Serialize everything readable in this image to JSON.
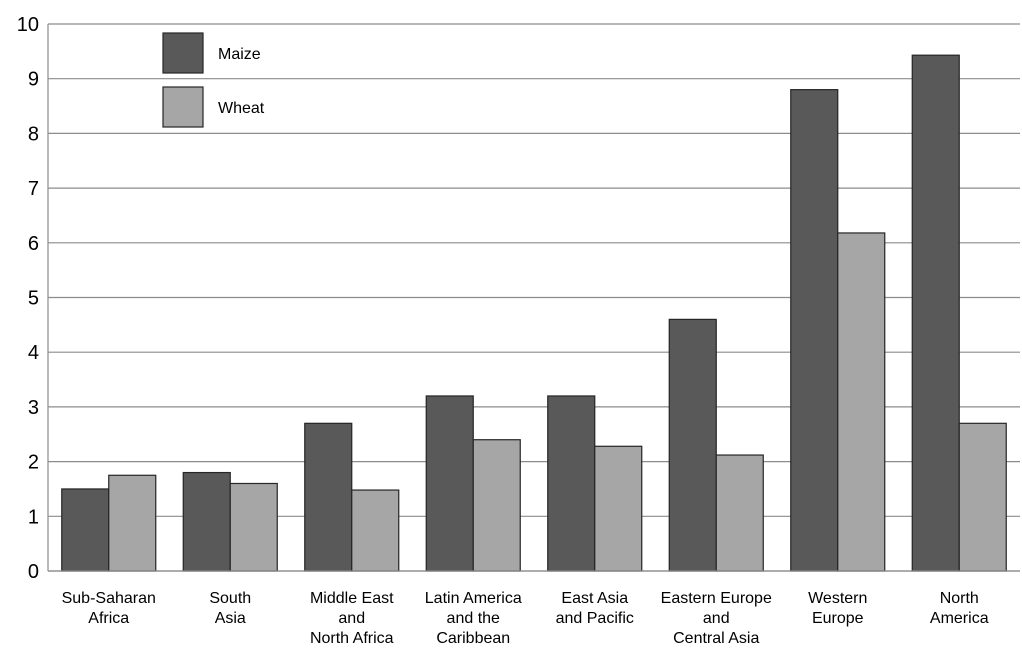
{
  "chart_data": {
    "type": "bar",
    "categories": [
      [
        "Sub-Saharan",
        "Africa"
      ],
      [
        "South",
        "Asia"
      ],
      [
        "Middle East",
        "and",
        "North Africa"
      ],
      [
        "Latin America",
        "and the",
        "Caribbean"
      ],
      [
        "East Asia",
        "and Pacific"
      ],
      [
        "Eastern Europe",
        "and",
        "Central Asia"
      ],
      [
        "Western",
        "Europe"
      ],
      [
        "North",
        "America"
      ]
    ],
    "series": [
      {
        "name": "Maize",
        "values": [
          1.5,
          1.8,
          2.7,
          3.2,
          3.2,
          4.6,
          8.8,
          9.43
        ],
        "color": "#595959"
      },
      {
        "name": "Wheat",
        "values": [
          1.75,
          1.6,
          1.48,
          2.4,
          2.28,
          2.12,
          6.18,
          2.7
        ],
        "color": "#a6a6a6"
      }
    ],
    "ylim": [
      0,
      10
    ],
    "yticks": [
      "0",
      "1",
      "2",
      "3",
      "4",
      "5",
      "6",
      "7",
      "8",
      "9",
      "10"
    ],
    "grid": true,
    "legend_position": "top-left"
  }
}
